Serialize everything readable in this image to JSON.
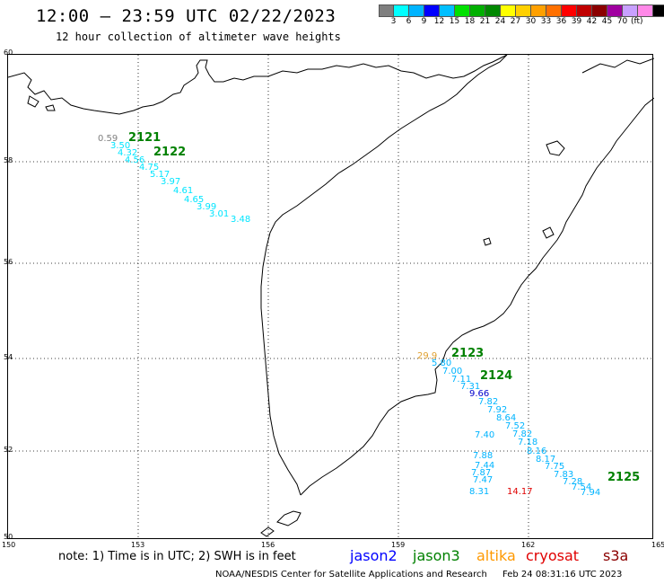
{
  "header": {
    "title": "12:00 — 23:59 UTC 02/22/2023",
    "subtitle": "12 hour collection of altimeter wave heights"
  },
  "colorbar": {
    "colors": [
      "#7f7f7f",
      "#00ffff",
      "#00b4ff",
      "#0000ff",
      "#00bfff",
      "#00e000",
      "#00b000",
      "#008800",
      "#ffff00",
      "#ffd000",
      "#ffa000",
      "#ff7000",
      "#ff0000",
      "#c00000",
      "#8b0000",
      "#a000a0",
      "#c8a0ff",
      "#ff88e8",
      "#000000"
    ],
    "labels": [
      "3",
      "6",
      "9",
      "12",
      "15",
      "18",
      "21",
      "24",
      "27",
      "30",
      "33",
      "36",
      "39",
      "42",
      "45",
      "70"
    ],
    "unit": "(ft)"
  },
  "axes": {
    "x_ticks": [
      "150",
      "153",
      "156",
      "159",
      "162",
      "165"
    ],
    "y_ticks": [
      "60",
      "58",
      "56",
      "54",
      "52",
      "50"
    ]
  },
  "tracks": [
    {
      "id": "2121",
      "color": "#008000"
    },
    {
      "id": "2122",
      "color": "#008000"
    },
    {
      "id": "2123",
      "color": "#008000"
    },
    {
      "id": "2124",
      "color": "#008000"
    },
    {
      "id": "2125",
      "color": "#008000"
    }
  ],
  "observations": [
    {
      "value": "0.59",
      "color": "#808080"
    },
    {
      "value": "3.50",
      "color": "#00e5ff"
    },
    {
      "value": "4.32",
      "color": "#00e5ff"
    },
    {
      "value": "4.56",
      "color": "#00e5ff"
    },
    {
      "value": "4.75",
      "color": "#00e5ff"
    },
    {
      "value": "5.17",
      "color": "#00e5ff"
    },
    {
      "value": "3.97",
      "color": "#00e5ff"
    },
    {
      "value": "4.61",
      "color": "#00e5ff"
    },
    {
      "value": "4.65",
      "color": "#00e5ff"
    },
    {
      "value": "3.99",
      "color": "#00e5ff"
    },
    {
      "value": "3.01",
      "color": "#00e5ff"
    },
    {
      "value": "3.48",
      "color": "#00e5ff"
    },
    {
      "value": "29.9",
      "color": "#e0a030"
    },
    {
      "value": "5.80",
      "color": "#00b4ff"
    },
    {
      "value": "7.00",
      "color": "#00b4ff"
    },
    {
      "value": "7.11",
      "color": "#00b4ff"
    },
    {
      "value": "7.31",
      "color": "#00b4ff"
    },
    {
      "value": "9.66",
      "color": "#0000cc"
    },
    {
      "value": "7.82",
      "color": "#00b4ff"
    },
    {
      "value": "7.92",
      "color": "#00b4ff"
    },
    {
      "value": "8.64",
      "color": "#00b4ff"
    },
    {
      "value": "7.52",
      "color": "#00b4ff"
    },
    {
      "value": "7.82",
      "color": "#00b4ff"
    },
    {
      "value": "7.18",
      "color": "#00b4ff"
    },
    {
      "value": "8.16",
      "color": "#00b4ff"
    },
    {
      "value": "8.17",
      "color": "#00b4ff"
    },
    {
      "value": "7.75",
      "color": "#00b4ff"
    },
    {
      "value": "7.83",
      "color": "#00b4ff"
    },
    {
      "value": "7.28",
      "color": "#00b4ff"
    },
    {
      "value": "7.54",
      "color": "#00b4ff"
    },
    {
      "value": "7.94",
      "color": "#00b4ff"
    },
    {
      "value": "7.40",
      "color": "#00b4ff"
    },
    {
      "value": "7.88",
      "color": "#00b4ff"
    },
    {
      "value": "7.44",
      "color": "#00b4ff"
    },
    {
      "value": "7.87",
      "color": "#00b4ff"
    },
    {
      "value": "7.47",
      "color": "#00b4ff"
    },
    {
      "value": "8.31",
      "color": "#00b4ff"
    },
    {
      "value": "14.17",
      "color": "#e00000"
    }
  ],
  "legend": {
    "note": "note:  1) Time is in UTC;  2) SWH is in feet",
    "satellites": [
      {
        "name": "jason2",
        "color": "#0000ff"
      },
      {
        "name": "jason3",
        "color": "#008000"
      },
      {
        "name": "altika",
        "color": "#ff9900"
      },
      {
        "name": "cryosat",
        "color": "#e00000"
      },
      {
        "name": "s3a",
        "color": "#8b0000"
      }
    ]
  },
  "footer": {
    "org": "NOAA/NESDIS Center for Satellite Applications and Research",
    "timestamp": "Feb 24 08:31:16 UTC 2023"
  }
}
